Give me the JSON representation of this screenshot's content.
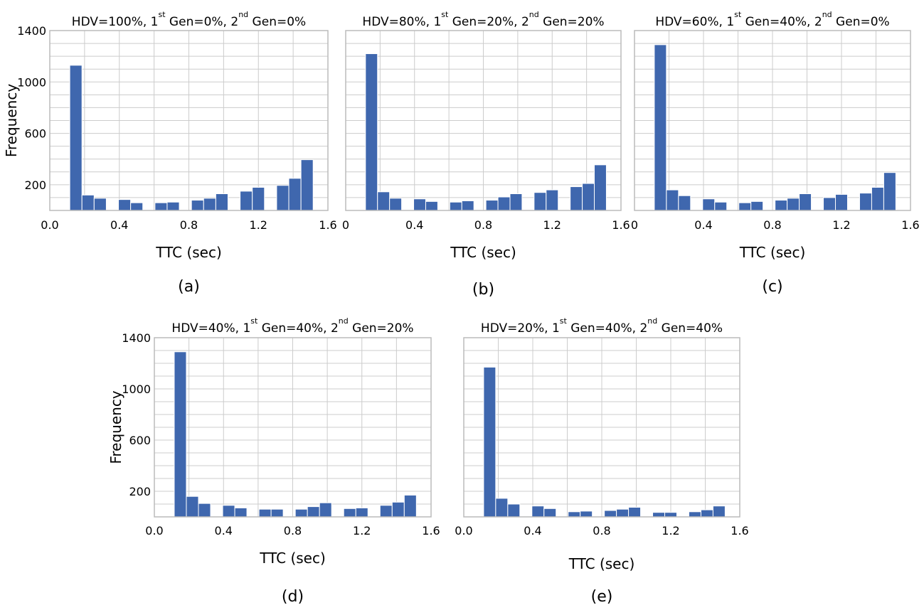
{
  "chart_data": [
    {
      "type": "bar",
      "panel_label": "(a)",
      "title_parts": [
        "HDV=100%, 1",
        "st",
        " Gen=0%, 2",
        "nd",
        " Gen=0%"
      ],
      "xlabel": "TTC (sec)",
      "ylabel": "Frequency",
      "xlim": [
        0.0,
        1.6
      ],
      "ylim": [
        0,
        1400
      ],
      "xticks": [
        "0.0",
        "0.4",
        "0.8",
        "1.2",
        "1.6"
      ],
      "yticks": [
        "200",
        "600",
        "1000",
        "1400"
      ],
      "grid": true,
      "bin_width": 0.07,
      "bins": [
        {
          "x": 0.15,
          "y": 1130
        },
        {
          "x": 0.22,
          "y": 120
        },
        {
          "x": 0.29,
          "y": 95
        },
        {
          "x": 0.43,
          "y": 85
        },
        {
          "x": 0.5,
          "y": 60
        },
        {
          "x": 0.64,
          "y": 60
        },
        {
          "x": 0.71,
          "y": 65
        },
        {
          "x": 0.85,
          "y": 80
        },
        {
          "x": 0.92,
          "y": 95
        },
        {
          "x": 0.99,
          "y": 130
        },
        {
          "x": 1.13,
          "y": 150
        },
        {
          "x": 1.2,
          "y": 180
        },
        {
          "x": 1.34,
          "y": 195
        },
        {
          "x": 1.41,
          "y": 250
        },
        {
          "x": 1.48,
          "y": 395
        }
      ]
    },
    {
      "type": "bar",
      "panel_label": "(b)",
      "title_parts": [
        "HDV=80%, 1",
        "st",
        " Gen=20%, 2",
        "nd",
        " Gen=20%"
      ],
      "xlabel": "TTC (sec)",
      "ylabel": "",
      "xlim": [
        0.0,
        1.6
      ],
      "ylim": [
        0,
        1400
      ],
      "xticks": [
        "0",
        "0.4",
        "0.8",
        "1.2",
        "1.6"
      ],
      "yticks": [],
      "grid": true,
      "bin_width": 0.07,
      "bins": [
        {
          "x": 0.15,
          "y": 1220
        },
        {
          "x": 0.22,
          "y": 145
        },
        {
          "x": 0.29,
          "y": 95
        },
        {
          "x": 0.43,
          "y": 90
        },
        {
          "x": 0.5,
          "y": 70
        },
        {
          "x": 0.64,
          "y": 65
        },
        {
          "x": 0.71,
          "y": 75
        },
        {
          "x": 0.85,
          "y": 80
        },
        {
          "x": 0.92,
          "y": 105
        },
        {
          "x": 0.99,
          "y": 130
        },
        {
          "x": 1.13,
          "y": 140
        },
        {
          "x": 1.2,
          "y": 160
        },
        {
          "x": 1.34,
          "y": 185
        },
        {
          "x": 1.41,
          "y": 210
        },
        {
          "x": 1.48,
          "y": 355
        }
      ]
    },
    {
      "type": "bar",
      "panel_label": "(c)",
      "title_parts": [
        "HDV=60%, 1",
        "st",
        " Gen=40%, 2",
        "nd",
        " Gen=0%"
      ],
      "xlabel": "TTC (sec)",
      "ylabel": "",
      "xlim": [
        0.0,
        1.6
      ],
      "ylim": [
        0,
        1400
      ],
      "xticks": [
        "0",
        "0.4",
        "0.8",
        "1.2",
        "1.6"
      ],
      "yticks": [],
      "grid": true,
      "bin_width": 0.07,
      "bins": [
        {
          "x": 0.15,
          "y": 1290
        },
        {
          "x": 0.22,
          "y": 160
        },
        {
          "x": 0.29,
          "y": 115
        },
        {
          "x": 0.43,
          "y": 90
        },
        {
          "x": 0.5,
          "y": 65
        },
        {
          "x": 0.64,
          "y": 60
        },
        {
          "x": 0.71,
          "y": 70
        },
        {
          "x": 0.85,
          "y": 80
        },
        {
          "x": 0.92,
          "y": 95
        },
        {
          "x": 0.99,
          "y": 130
        },
        {
          "x": 1.13,
          "y": 100
        },
        {
          "x": 1.2,
          "y": 125
        },
        {
          "x": 1.34,
          "y": 135
        },
        {
          "x": 1.41,
          "y": 180
        },
        {
          "x": 1.48,
          "y": 295
        }
      ]
    },
    {
      "type": "bar",
      "panel_label": "(d)",
      "title_parts": [
        "HDV=40%, 1",
        "st",
        " Gen=40%, 2",
        "nd",
        " Gen=20%"
      ],
      "xlabel": "TTC (sec)",
      "ylabel": "Frequency",
      "xlim": [
        0.0,
        1.6
      ],
      "ylim": [
        0,
        1400
      ],
      "xticks": [
        "0.0",
        "0.4",
        "0.8",
        "1.2",
        "1.6"
      ],
      "yticks": [
        "200",
        "600",
        "1000",
        "1400"
      ],
      "grid": true,
      "bin_width": 0.07,
      "bins": [
        {
          "x": 0.15,
          "y": 1290
        },
        {
          "x": 0.22,
          "y": 160
        },
        {
          "x": 0.29,
          "y": 105
        },
        {
          "x": 0.43,
          "y": 90
        },
        {
          "x": 0.5,
          "y": 70
        },
        {
          "x": 0.64,
          "y": 60
        },
        {
          "x": 0.71,
          "y": 60
        },
        {
          "x": 0.85,
          "y": 60
        },
        {
          "x": 0.92,
          "y": 80
        },
        {
          "x": 0.99,
          "y": 110
        },
        {
          "x": 1.13,
          "y": 65
        },
        {
          "x": 1.2,
          "y": 70
        },
        {
          "x": 1.34,
          "y": 90
        },
        {
          "x": 1.41,
          "y": 115
        },
        {
          "x": 1.48,
          "y": 170
        }
      ]
    },
    {
      "type": "bar",
      "panel_label": "(e)",
      "title_parts": [
        "HDV=20%, 1",
        "st",
        " Gen=40%, 2",
        "nd",
        " Gen=40%"
      ],
      "xlabel": "TTC (sec)",
      "ylabel": "",
      "xlim": [
        0.0,
        1.6
      ],
      "ylim": [
        0,
        1400
      ],
      "xticks": [
        "0.0",
        "0.4",
        "0.8",
        "1.2",
        "1.6"
      ],
      "yticks": [],
      "grid": true,
      "bin_width": 0.07,
      "bins": [
        {
          "x": 0.15,
          "y": 1170
        },
        {
          "x": 0.22,
          "y": 145
        },
        {
          "x": 0.29,
          "y": 100
        },
        {
          "x": 0.43,
          "y": 85
        },
        {
          "x": 0.5,
          "y": 65
        },
        {
          "x": 0.64,
          "y": 40
        },
        {
          "x": 0.71,
          "y": 45
        },
        {
          "x": 0.85,
          "y": 50
        },
        {
          "x": 0.92,
          "y": 60
        },
        {
          "x": 0.99,
          "y": 75
        },
        {
          "x": 1.13,
          "y": 35
        },
        {
          "x": 1.2,
          "y": 35
        },
        {
          "x": 1.34,
          "y": 40
        },
        {
          "x": 1.41,
          "y": 55
        },
        {
          "x": 1.48,
          "y": 85
        }
      ]
    }
  ],
  "colors": {
    "bar": "#3f67ae",
    "bar_edge": "#ffffff",
    "grid": "#cccccc",
    "frame": "#bbbbbb",
    "text": "#000000"
  }
}
